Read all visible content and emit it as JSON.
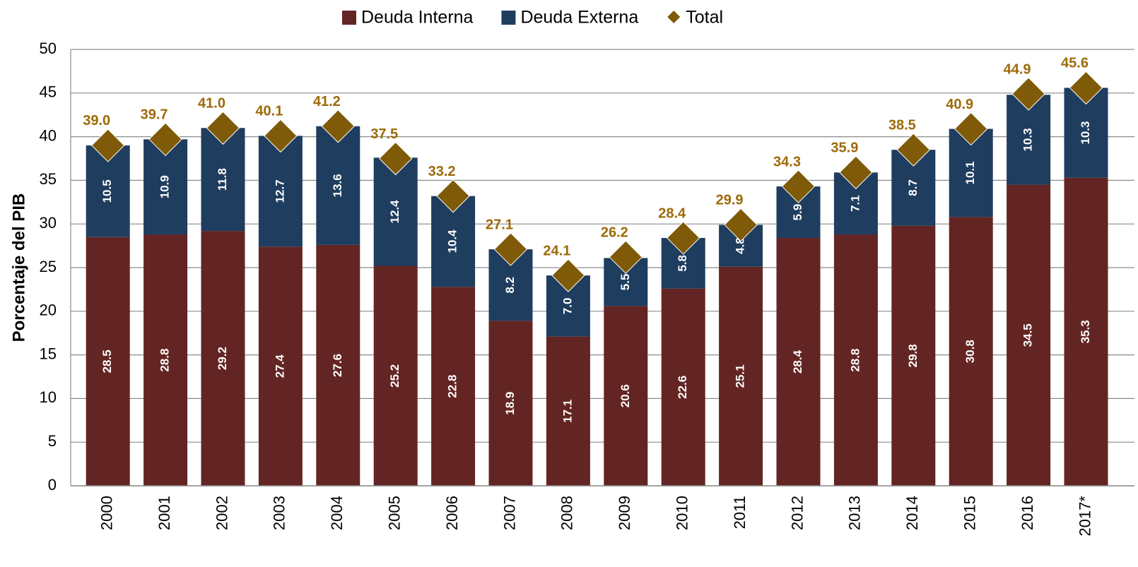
{
  "chart_data": {
    "type": "bar",
    "stacked": true,
    "y_label": "Porcentaje del PIB",
    "categories": [
      "2000",
      "2001",
      "2002",
      "2003",
      "2004",
      "2005",
      "2006",
      "2007",
      "2008",
      "2009",
      "2010",
      "2011",
      "2012",
      "2013",
      "2014",
      "2015",
      "2016",
      "2017*"
    ],
    "series": [
      {
        "name": "Deuda Interna",
        "color": "#632523",
        "values": [
          28.5,
          28.8,
          29.2,
          27.4,
          27.6,
          25.2,
          22.8,
          18.9,
          17.1,
          20.6,
          22.6,
          25.1,
          28.4,
          28.8,
          29.8,
          30.8,
          34.5,
          35.3
        ],
        "value_labels": [
          "28.5",
          "28.8",
          "29.2",
          "27.4",
          "27.6",
          "25.2",
          "22.8",
          "18.9",
          "17.1",
          "20.6",
          "22.6",
          "25.1",
          "28.4",
          "28.8",
          "29.8",
          "30.8",
          "34.5",
          "35.3"
        ]
      },
      {
        "name": "Deuda Externa",
        "color": "#1f3d5f",
        "values": [
          10.5,
          10.9,
          11.8,
          12.7,
          13.6,
          12.4,
          10.4,
          8.2,
          7.0,
          5.5,
          5.8,
          4.8,
          5.9,
          7.1,
          8.7,
          10.1,
          10.3,
          10.3
        ],
        "value_labels": [
          "10.5",
          "10.9",
          "11.8",
          "12.7",
          "13.6",
          "12.4",
          "10.4",
          "8.2",
          "7.0",
          "5.5",
          "5.8",
          "4.8",
          "5.9",
          "7.1",
          "8.7",
          "10.1",
          "10.3",
          "10.3"
        ]
      },
      {
        "name": "Total",
        "color": "#7f5a08",
        "marker": "diamond",
        "values": [
          39.0,
          39.7,
          41.0,
          40.1,
          41.2,
          37.5,
          33.2,
          27.1,
          24.1,
          26.2,
          28.4,
          29.9,
          34.3,
          35.9,
          38.5,
          40.9,
          44.9,
          45.6
        ],
        "value_labels": [
          "39.0",
          "39.7",
          "41.0",
          "40.1",
          "41.2",
          "37.5",
          "33.2",
          "27.1",
          "24.1",
          "26.2",
          "28.4",
          "29.9",
          "34.3",
          "35.9",
          "38.5",
          "40.9",
          "44.9",
          "45.6"
        ]
      }
    ],
    "ylim": [
      0,
      50
    ],
    "yticks": [
      0,
      5,
      10,
      15,
      20,
      25,
      30,
      35,
      40,
      45,
      50
    ],
    "grid": true,
    "legend": "top"
  }
}
